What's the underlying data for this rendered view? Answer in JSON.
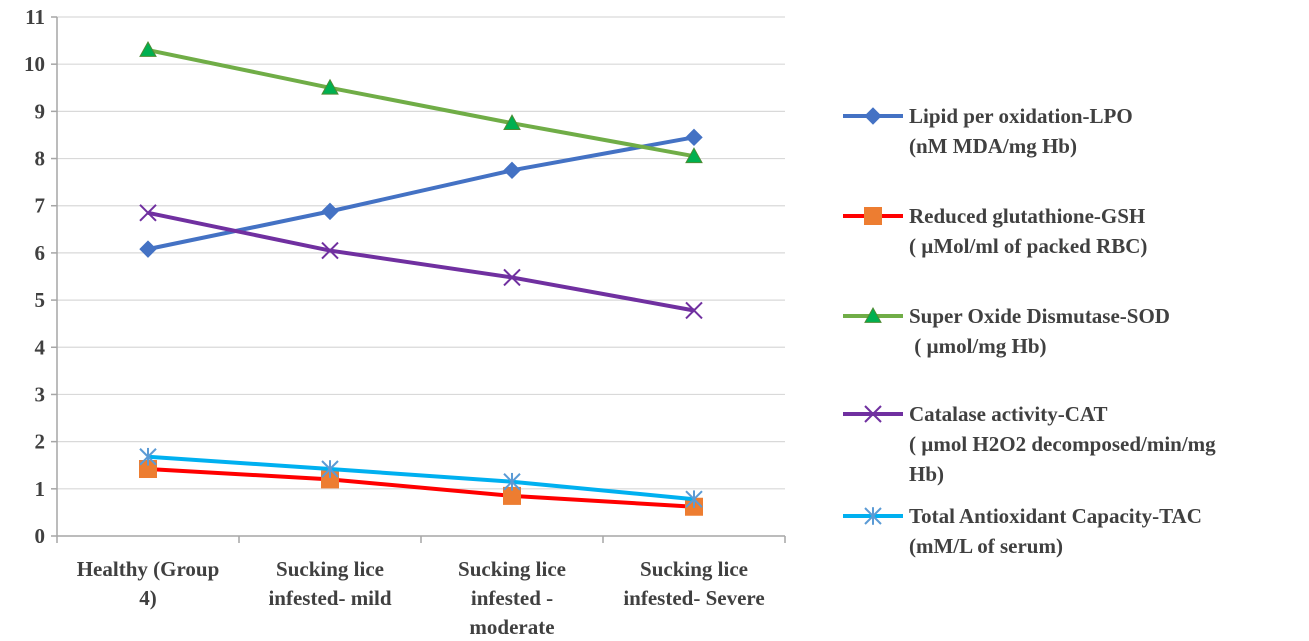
{
  "chart_data": {
    "type": "line",
    "categories": [
      [
        "Healthy (Group",
        "4)"
      ],
      [
        "Sucking lice",
        "infested- mild"
      ],
      [
        "Sucking lice",
        "infested -",
        "moderate"
      ],
      [
        "Sucking lice",
        "infested- Severe"
      ]
    ],
    "ylim": [
      0,
      11
    ],
    "yticks": [
      0,
      1,
      2,
      3,
      4,
      5,
      6,
      7,
      8,
      9,
      10,
      11
    ],
    "grid": true,
    "legend_position": "right",
    "title": "",
    "xlabel": "",
    "ylabel": "",
    "series": [
      {
        "name": [
          "Lipid per oxidation-LPO",
          "(nM MDA/mg Hb)"
        ],
        "values": [
          6.08,
          6.88,
          7.75,
          8.45
        ],
        "color": "#4472C4",
        "marker": "diamond"
      },
      {
        "name": [
          "Reduced glutathione-GSH",
          "( µMol/ml of packed RBC)"
        ],
        "values": [
          1.42,
          1.2,
          0.85,
          0.62
        ],
        "color": "#FF0000",
        "marker_color": "#ED7D31",
        "marker": "square"
      },
      {
        "name": [
          "Super Oxide Dismutase-SOD",
          " ( µmol/mg Hb)"
        ],
        "values": [
          10.3,
          9.5,
          8.75,
          8.05
        ],
        "color": "#70AD47",
        "marker_color": "#00B050",
        "marker": "triangle"
      },
      {
        "name": [
          "Catalase activity-CAT",
          "( µmol H2O2 decomposed/min/mg",
          "Hb)"
        ],
        "values": [
          6.85,
          6.05,
          5.48,
          4.78
        ],
        "color": "#7030A0",
        "marker": "x"
      },
      {
        "name": [
          "Total Antioxidant Capacity-TAC",
          "(mM/L of serum)"
        ],
        "values": [
          1.68,
          1.42,
          1.15,
          0.78
        ],
        "color": "#00B0F0",
        "marker_color": "#5B9BD5",
        "marker": "star"
      }
    ]
  }
}
